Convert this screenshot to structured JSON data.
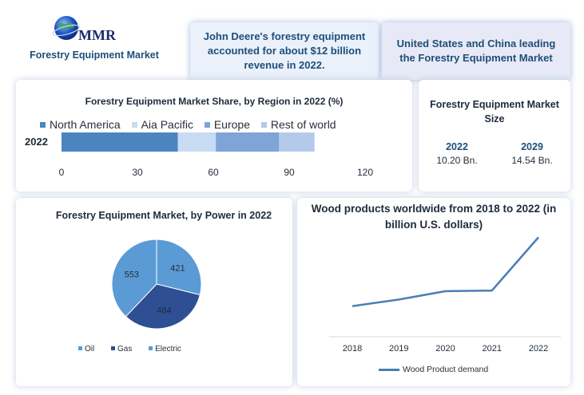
{
  "header": {
    "logo_text": "MMR",
    "site_title": "Forestry Equipment Market",
    "box1_text": "John Deere's forestry equipment accounted for about $12 billion revenue in 2022.",
    "box2_text": "United States and China leading the Forestry Equipment Market"
  },
  "market_size": {
    "title": "Forestry Equipment Market Size",
    "col1_year": "2022",
    "col1_value": "10.20 Bn.",
    "col2_year": "2029",
    "col2_value": "14.54 Bn."
  },
  "colors": {
    "north_america": "#4a85c0",
    "asia_pacific": "#c7dcf2",
    "europe": "#7ea4d8",
    "rest_of_world": "#b5c9ea",
    "oil": "#5b9bd5",
    "gas": "#2e4f93",
    "electric": "#5b9bd5",
    "line": "#4a7fb5"
  },
  "chart_data": [
    {
      "type": "bar",
      "orientation": "horizontal-stacked",
      "title": "Forestry Equipment Market Share, by Region in 2022 (%)",
      "categories": [
        "2022"
      ],
      "series": [
        {
          "name": "North America",
          "values": [
            46
          ]
        },
        {
          "name": "Aia Pacific",
          "values": [
            15
          ]
        },
        {
          "name": "Europe",
          "values": [
            25
          ]
        },
        {
          "name": "Rest of world",
          "values": [
            14
          ]
        }
      ],
      "xticks": [
        "0",
        "30",
        "60",
        "90",
        "120"
      ],
      "xlim": [
        0,
        120
      ],
      "legend": "top"
    },
    {
      "type": "pie",
      "title": "Forestry Equipment Market, by Power in 2022",
      "labels": [
        "Oil",
        "Gas",
        "Electric"
      ],
      "values": [
        553,
        484,
        421
      ],
      "legend": "bottom"
    },
    {
      "type": "line",
      "title": "Wood products worldwide from 2018 to 2022 (in billion U.S. dollars)",
      "x": [
        "2018",
        "2019",
        "2020",
        "2021",
        "2022"
      ],
      "series": [
        {
          "name": "Wood Product demand",
          "values": [
            545,
            567,
            595,
            597,
            775
          ]
        }
      ],
      "grid": false,
      "legend": "bottom"
    }
  ]
}
